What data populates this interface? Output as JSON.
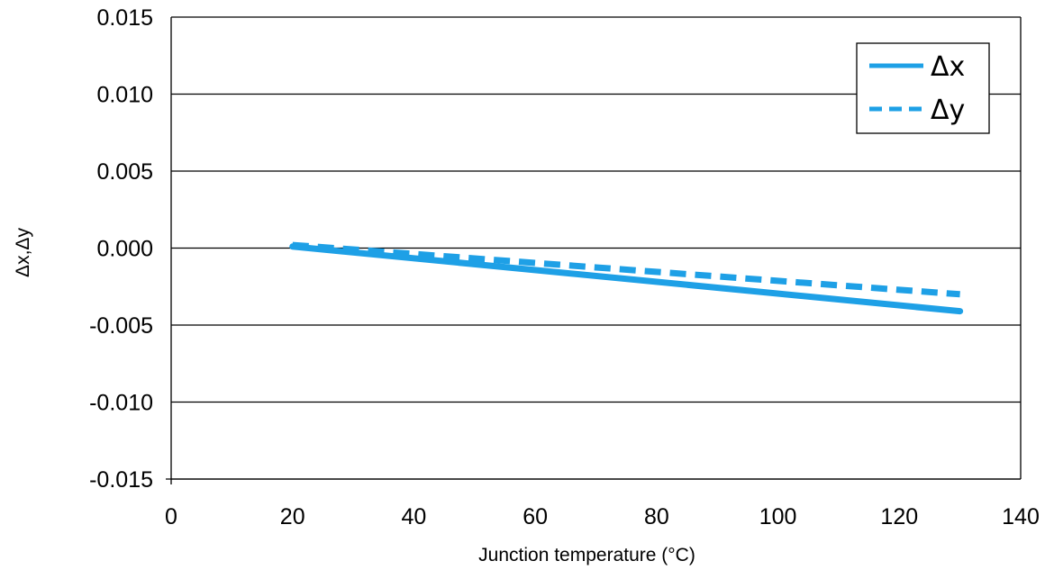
{
  "chart_data": {
    "type": "line",
    "title": "",
    "xlabel": "Junction temperature (°C)",
    "ylabel": "Δx,Δy",
    "xlim": [
      0,
      140
    ],
    "ylim": [
      -0.015,
      0.015
    ],
    "x_ticks": [
      0,
      20,
      40,
      60,
      80,
      100,
      120,
      140
    ],
    "x_tick_labels": [
      "0",
      "20",
      "40",
      "60",
      "80",
      "100",
      "120",
      "140"
    ],
    "y_ticks": [
      0.015,
      0.01,
      0.005,
      0.0,
      -0.005,
      -0.01,
      -0.015
    ],
    "y_tick_labels": [
      "0.015",
      "0.010",
      "0.005",
      "0.000",
      "-0.005",
      "-0.010",
      "-0.015"
    ],
    "grid": "horizontal",
    "legend_position": "top-right",
    "series": [
      {
        "name": "Δx",
        "style": "solid",
        "color": "#1ea0e6",
        "x": [
          20,
          130
        ],
        "y": [
          0.0001,
          -0.0041
        ]
      },
      {
        "name": "Δy",
        "style": "dashed",
        "color": "#1ea0e6",
        "x": [
          20,
          130
        ],
        "y": [
          0.0002,
          -0.003
        ]
      }
    ]
  }
}
